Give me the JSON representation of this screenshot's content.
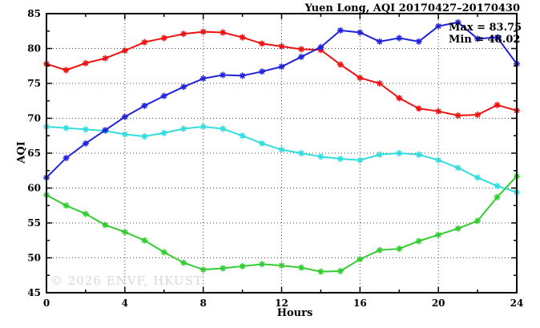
{
  "title": "Yuen Long, AQI 20170427–20170430",
  "watermark": "© 2026 ENVF, HKUST",
  "legend": {
    "lines": [
      "Max = 83.75",
      "Min = 48.02"
    ]
  },
  "colors": {
    "red": "#ee1111",
    "blue": "#2222dd",
    "cyan": "#33dddd",
    "green": "#33cc33",
    "axis": "#000000",
    "grid": "#444444",
    "watermark_gray": "#d8d8d8"
  },
  "chart_data": {
    "type": "line",
    "title": "Yuen Long, AQI 20170427–20170430",
    "xlabel": "Hours",
    "ylabel": "AQI",
    "xlim": [
      0,
      24
    ],
    "ylim": [
      45,
      85
    ],
    "grid": "dotted lines at every labeled tick (x step 4, y step 5)",
    "legend_position": "top-right inside plot (text annotation only)",
    "x_major_ticks": [
      0,
      4,
      8,
      12,
      16,
      20,
      24
    ],
    "x_tick_labels": [
      "0",
      "4",
      "8",
      "12",
      "16",
      "20",
      "24"
    ],
    "x_minor_step": 2,
    "y_major_ticks": [
      45,
      50,
      55,
      60,
      65,
      70,
      75,
      80,
      85
    ],
    "y_tick_labels": [
      "45",
      "50",
      "55",
      "60",
      "65",
      "70",
      "75",
      "80",
      "85"
    ],
    "y_minor_step": 2.5,
    "marker": "asterisk",
    "x": [
      0,
      1,
      2,
      3,
      4,
      5,
      6,
      7,
      8,
      9,
      10,
      11,
      12,
      13,
      14,
      15,
      16,
      17,
      18,
      19,
      20,
      21,
      22,
      23,
      24
    ],
    "series": [
      {
        "name": "cyan-series",
        "color": "#33dddd",
        "values": [
          68.8,
          68.6,
          68.4,
          68.2,
          67.7,
          67.4,
          67.9,
          68.5,
          68.8,
          68.5,
          67.5,
          66.4,
          65.5,
          65.0,
          64.5,
          64.2,
          64.0,
          64.8,
          65.0,
          64.8,
          64.0,
          62.9,
          61.5,
          60.3,
          59.4
        ]
      },
      {
        "name": "green-series",
        "color": "#33cc33",
        "values": [
          59.0,
          57.5,
          56.3,
          54.7,
          53.7,
          52.5,
          50.8,
          49.3,
          48.3,
          48.5,
          48.8,
          49.1,
          48.9,
          48.6,
          48.02,
          48.1,
          49.8,
          51.1,
          51.3,
          52.4,
          53.3,
          54.2,
          55.3,
          58.7,
          61.7
        ]
      },
      {
        "name": "red-series",
        "color": "#ee1111",
        "values": [
          77.8,
          76.9,
          77.9,
          78.6,
          79.7,
          80.9,
          81.5,
          82.1,
          82.4,
          82.3,
          81.6,
          80.7,
          80.3,
          79.9,
          79.8,
          77.7,
          75.8,
          75.0,
          72.9,
          71.4,
          71.0,
          70.4,
          70.5,
          71.9,
          71.1
        ]
      },
      {
        "name": "blue-series",
        "color": "#2222dd",
        "values": [
          61.5,
          64.3,
          66.4,
          68.3,
          70.2,
          71.8,
          73.2,
          74.5,
          75.7,
          76.2,
          76.1,
          76.7,
          77.4,
          78.8,
          80.2,
          82.6,
          82.3,
          81.0,
          81.5,
          81.0,
          83.2,
          83.75,
          81.4,
          81.6,
          77.8
        ]
      }
    ],
    "annotations": [
      "Max = 83.75",
      "Min = 48.02"
    ]
  }
}
